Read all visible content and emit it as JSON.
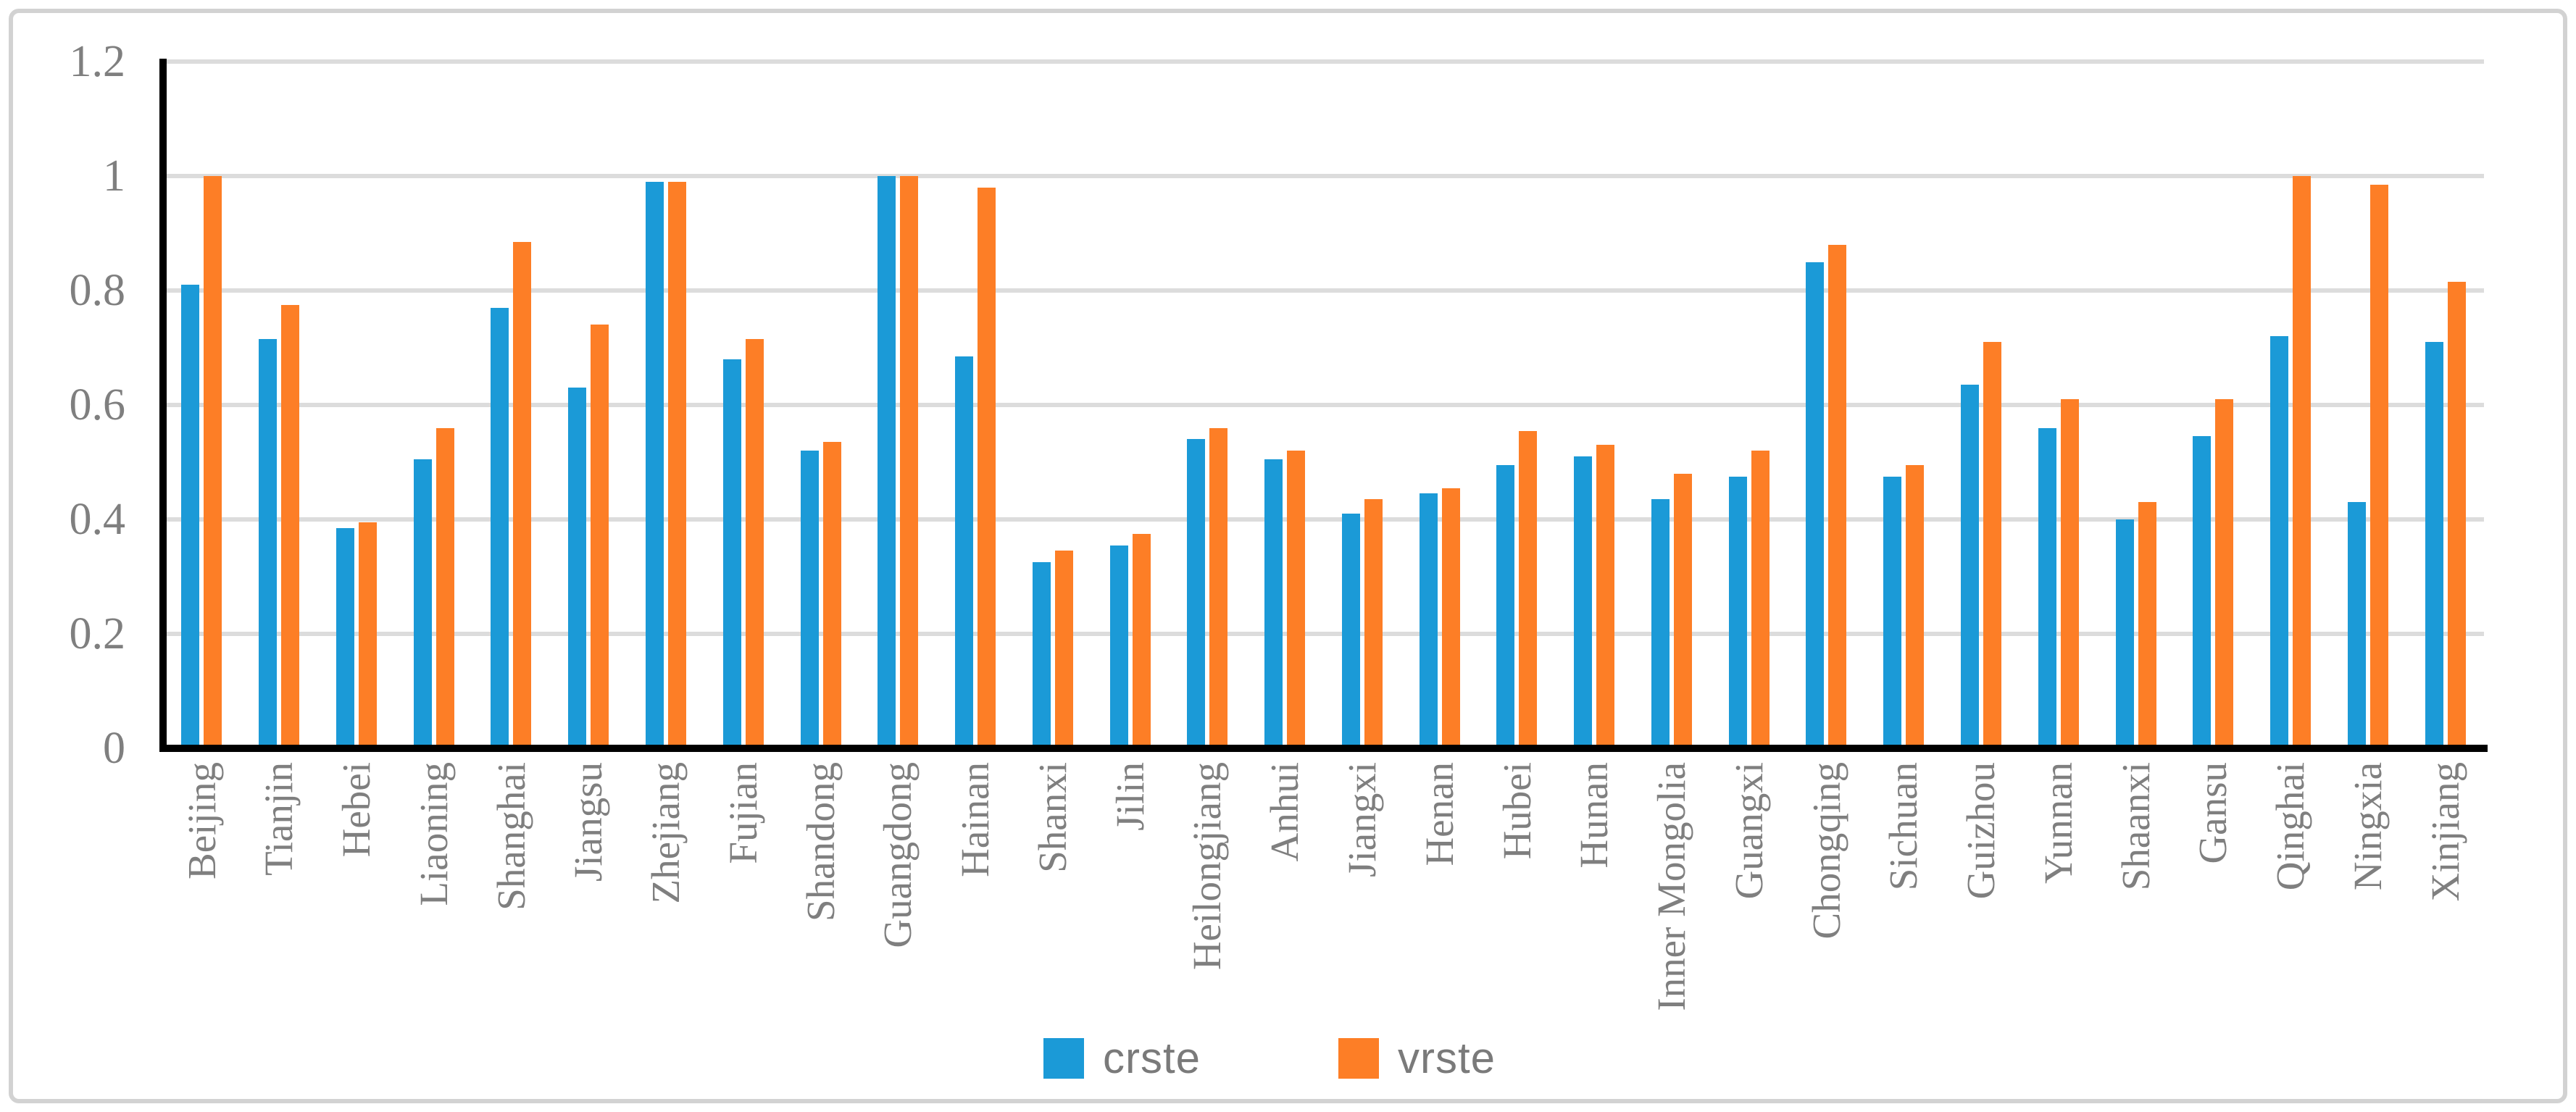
{
  "chart_data": {
    "type": "bar",
    "title": "",
    "xlabel": "",
    "ylabel": "",
    "categories": [
      "Beijing",
      "Tianjin",
      "Hebei",
      "Liaoning",
      "Shanghai",
      "Jiangsu",
      "Zhejiang",
      "Fujian",
      "Shandong",
      "Guangdong",
      "Hainan",
      "Shanxi",
      "Jilin",
      "Heilongjiang",
      "Anhui",
      "Jiangxi",
      "Henan",
      "Hubei",
      "Hunan",
      "Inner Mongolia",
      "Guangxi",
      "Chongqing",
      "Sichuan",
      "Guizhou",
      "Yunnan",
      "Shaanxi",
      "Gansu",
      "Qinghai",
      "Ningxia",
      "Xinjiang"
    ],
    "series": [
      {
        "name": "crste",
        "color": "#1B9AD7",
        "values": [
          0.81,
          0.715,
          0.385,
          0.505,
          0.77,
          0.63,
          0.99,
          0.68,
          0.52,
          1.0,
          0.685,
          0.325,
          0.355,
          0.54,
          0.505,
          0.41,
          0.445,
          0.495,
          0.51,
          0.435,
          0.475,
          0.85,
          0.475,
          0.635,
          0.56,
          0.4,
          0.545,
          0.72,
          0.43,
          0.71
        ]
      },
      {
        "name": "vrste",
        "color": "#FD7E26",
        "values": [
          1.0,
          0.775,
          0.395,
          0.56,
          0.885,
          0.74,
          0.99,
          0.715,
          0.535,
          1.0,
          0.98,
          0.345,
          0.375,
          0.56,
          0.52,
          0.435,
          0.455,
          0.555,
          0.53,
          0.48,
          0.52,
          0.88,
          0.495,
          0.71,
          0.61,
          0.43,
          0.61,
          1.0,
          0.985,
          0.815
        ]
      }
    ],
    "ylim": [
      0,
      1.2
    ],
    "yticks": [
      {
        "value": 1.2,
        "label": "1.2"
      },
      {
        "value": 1.0,
        "label": "1"
      },
      {
        "value": 0.8,
        "label": "0.8"
      },
      {
        "value": 0.6,
        "label": "0.6"
      },
      {
        "value": 0.4,
        "label": "0.4"
      },
      {
        "value": 0.2,
        "label": "0.2"
      },
      {
        "value": 0.0,
        "label": "0"
      }
    ],
    "grid": "horizontal",
    "legend_position": "bottom-center"
  },
  "styles": {
    "bar_blue": "#1B9AD7",
    "bar_orange": "#FD7E26",
    "gridline_color": "#DCDCDC",
    "axis_color": "#000000",
    "label_color": "#7F7F7F",
    "frame_border_color": "#D2D2D2",
    "background": "#FFFFFF"
  }
}
